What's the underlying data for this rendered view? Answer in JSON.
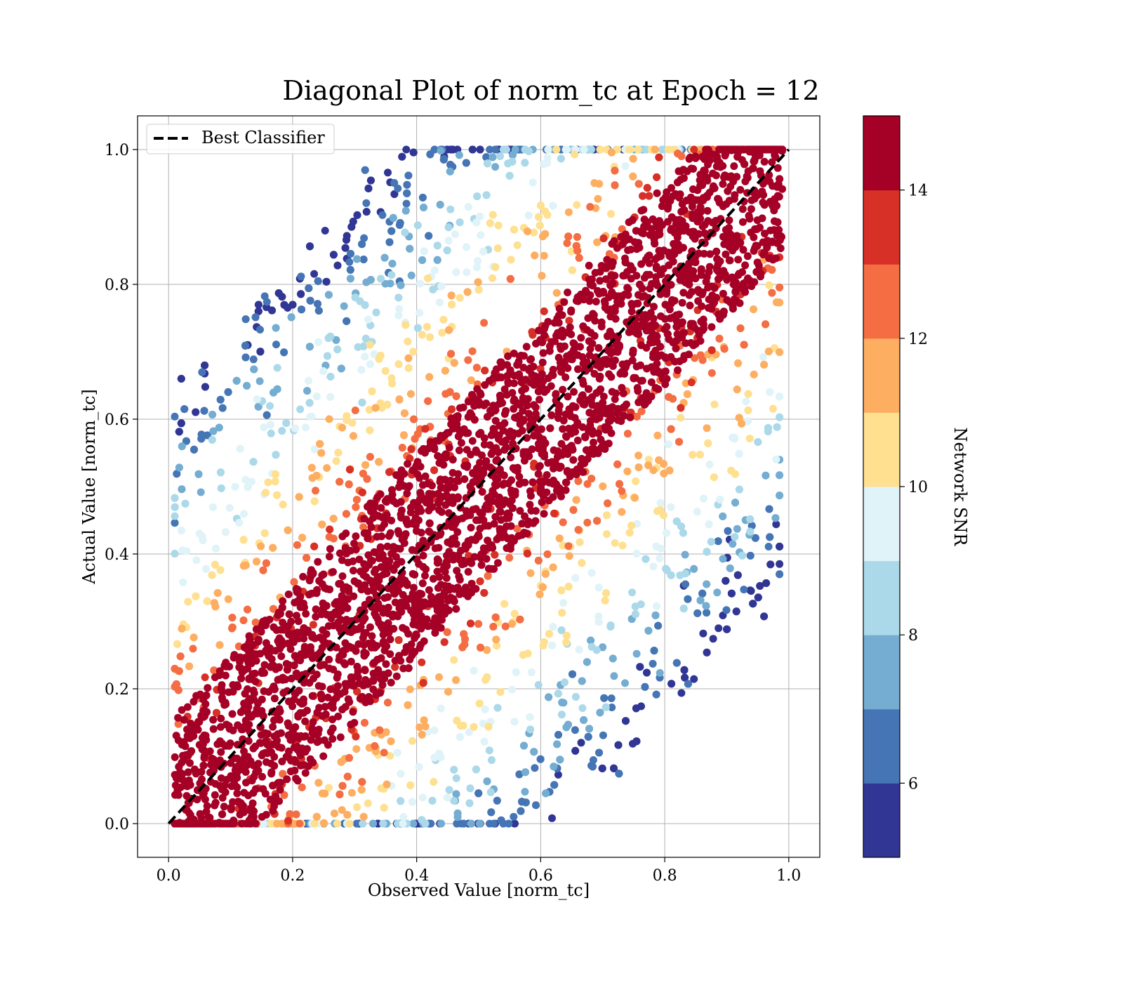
{
  "chart_data": {
    "type": "scatter",
    "title": "Diagonal Plot of norm_tc at Epoch = 12",
    "xlabel": "Observed Value [norm_tc]",
    "ylabel": "Actual Value [norm_tc]",
    "xlim": [
      -0.05,
      1.05
    ],
    "ylim": [
      -0.05,
      1.05
    ],
    "xticks": [
      "0.0",
      "0.2",
      "0.4",
      "0.6",
      "0.8",
      "1.0"
    ],
    "yticks": [
      "0.0",
      "0.2",
      "0.4",
      "0.6",
      "0.8",
      "1.0"
    ],
    "grid": true,
    "legend": {
      "position": "upper-left",
      "entries": [
        "Best Classifier"
      ]
    },
    "reference_line": {
      "name": "Best Classifier",
      "style": "dashed",
      "color": "#000000",
      "x": [
        0,
        1
      ],
      "y": [
        0,
        1
      ]
    },
    "colorbar": {
      "label": "Network SNR",
      "range": [
        5,
        15
      ],
      "ticks": [
        "6",
        "8",
        "10",
        "12",
        "14"
      ],
      "bins": [
        5,
        6,
        7,
        8,
        9,
        10,
        11,
        12,
        13,
        14,
        15
      ],
      "colors": [
        "#313695",
        "#4575b4",
        "#74add1",
        "#abd9e9",
        "#e0f3f8",
        "#fee090",
        "#fdae61",
        "#f46d43",
        "#d73027",
        "#a50026"
      ]
    },
    "distribution": {
      "description_values": {
        "high_snr_band_half_width": 0.16,
        "low_snr_spread_max": 0.75,
        "snr_band_colors_near_diagonal": "#a50026"
      }
    }
  }
}
